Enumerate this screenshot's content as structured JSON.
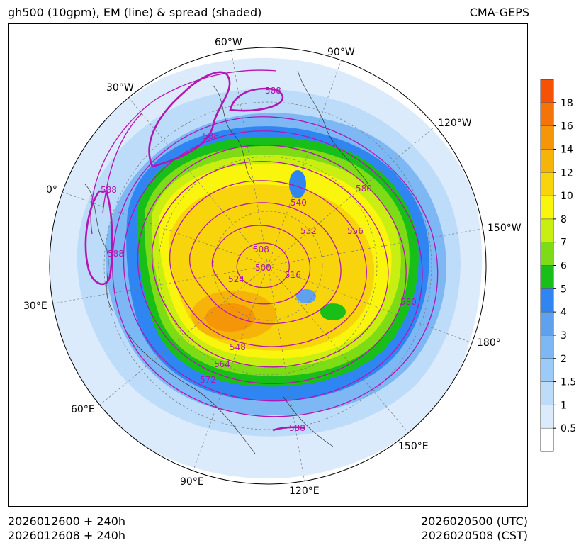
{
  "title": "gh500 (10gpm), EM (line) & spread (shaded)",
  "model": "CMA-GEPS",
  "footer": {
    "init_utc": "2026012600 + 240h",
    "init_cst": "2026012608 + 240h",
    "valid_utc": "2026020500 (UTC)",
    "valid_cst": "2026020508 (CST)"
  },
  "longitude_labels": [
    "60°W",
    "90°W",
    "30°W",
    "120°W",
    "0°",
    "150°W",
    "30°E",
    "180°",
    "60°E",
    "150°E",
    "90°E",
    "120°E"
  ],
  "contour_labels": [
    "588",
    "588",
    "588",
    "588",
    "588",
    "580",
    "540",
    "532",
    "556",
    "508",
    "500",
    "516",
    "524",
    "548",
    "564",
    "572",
    "580"
  ],
  "colorbar": {
    "levels": [
      "0.5",
      "1",
      "1.5",
      "2",
      "3",
      "4",
      "5",
      "6",
      "7",
      "8",
      "10",
      "12",
      "14",
      "16",
      "18"
    ],
    "colors": [
      "#ffffff",
      "#dcebfb",
      "#bcdcfa",
      "#9ccbf7",
      "#7db8f4",
      "#5ea2ef",
      "#2f86f3",
      "#19bf19",
      "#7edc17",
      "#c9ef12",
      "#faf50d",
      "#f8d40c",
      "#f6b408",
      "#f59508",
      "#f47408",
      "#f55206"
    ]
  },
  "colors": {
    "contour": "#b316b3",
    "contour_label": "#b316b3",
    "coast": "#333333"
  }
}
